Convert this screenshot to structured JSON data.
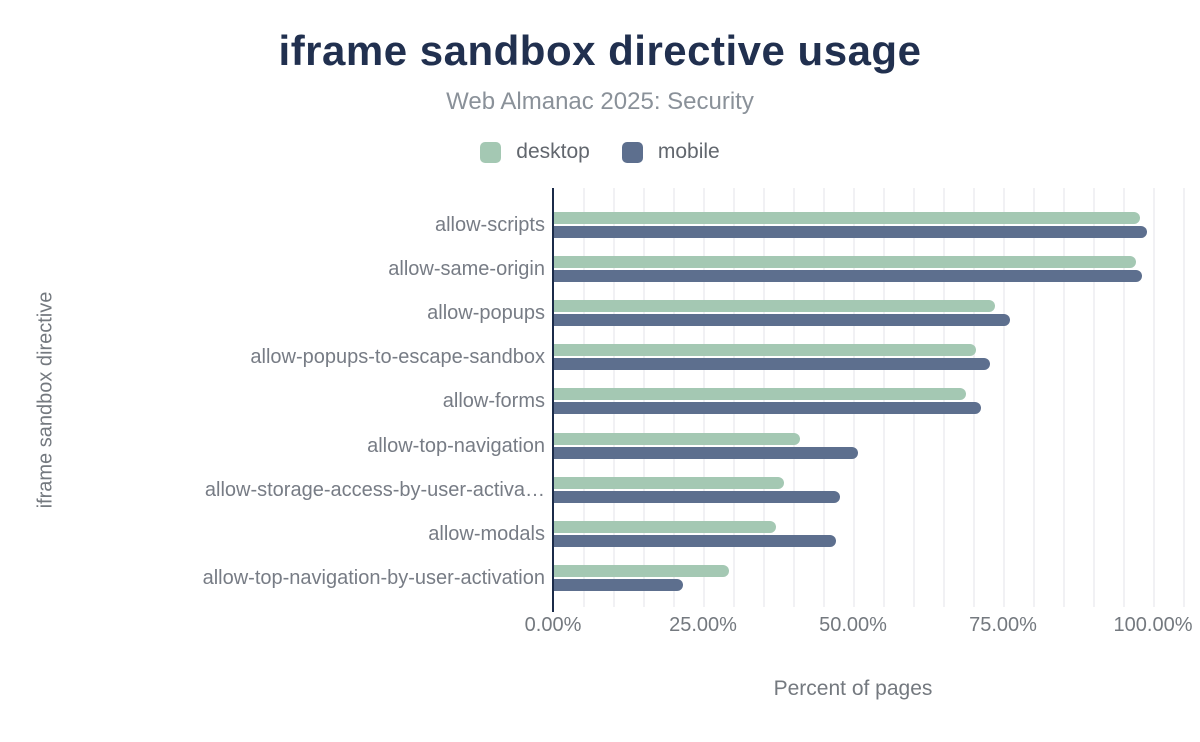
{
  "chart_data": {
    "type": "bar",
    "orientation": "horizontal",
    "title": "iframe sandbox directive usage",
    "subtitle": "Web Almanac 2025: Security",
    "xlabel": "Percent of pages",
    "ylabel": "iframe sandbox directive",
    "categories": [
      "allow-scripts",
      "allow-same-origin",
      "allow-popups",
      "allow-popups-to-escape-sandbox",
      "allow-forms",
      "allow-top-navigation",
      "allow-storage-access-by-user-activation",
      "allow-modals",
      "allow-top-navigation-by-user-activation"
    ],
    "categories_display": [
      "allow-scripts",
      "allow-same-origin",
      "allow-popups",
      "allow-popups-to-escape-sandbox",
      "allow-forms",
      "allow-top-navigation",
      "allow-storage-access-by-user-activa…",
      "allow-modals",
      "allow-top-navigation-by-user-activation"
    ],
    "series": [
      {
        "name": "desktop",
        "color": "#a4c8b3",
        "values": [
          97.7,
          97.0,
          73.5,
          70.3,
          68.7,
          41.0,
          38.3,
          37.0,
          29.1
        ]
      },
      {
        "name": "mobile",
        "color": "#5d6f8e",
        "values": [
          98.8,
          98.0,
          76.0,
          72.6,
          71.2,
          50.7,
          47.7,
          47.0,
          21.5
        ]
      }
    ],
    "xlim": [
      0,
      105
    ],
    "xticks": [
      {
        "value": 0,
        "label": "0.00%"
      },
      {
        "value": 25,
        "label": "25.00%"
      },
      {
        "value": 50,
        "label": "50.00%"
      },
      {
        "value": 75,
        "label": "75.00%"
      },
      {
        "value": 100,
        "label": "100.00%"
      }
    ],
    "grid": {
      "show": true,
      "step": 5
    },
    "legend_position": "top",
    "units": "percent of pages"
  },
  "colors": {
    "title": "#21304f",
    "subtitle": "#8a9199",
    "axis_line": "#1b2b49",
    "gridline": "#f1f1f4",
    "label_text": "#777c85"
  }
}
